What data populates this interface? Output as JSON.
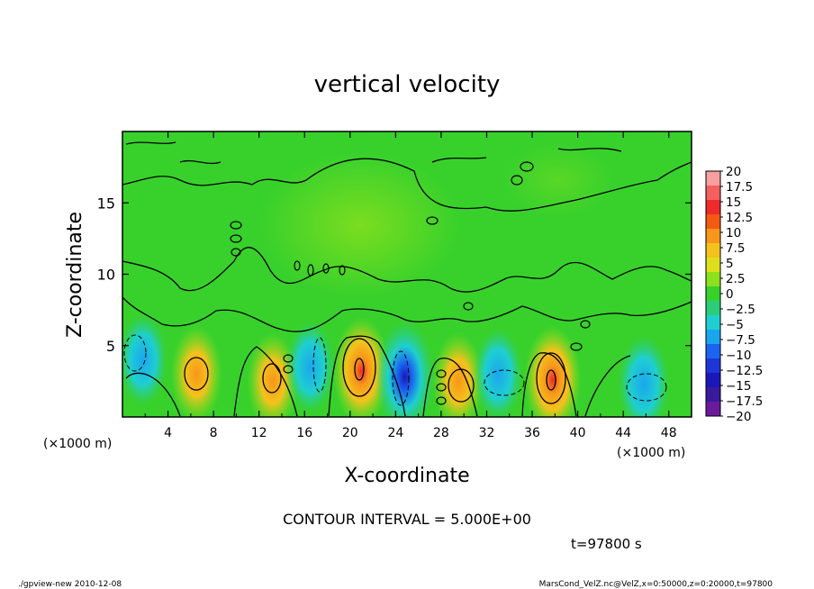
{
  "chart_data": {
    "type": "heatmap",
    "title": "vertical velocity",
    "xlabel": "X-coordinate",
    "ylabel": "Z-coordinate",
    "x_unit_label": "(×1000 m)",
    "x_unit_label_right": "(×1000 m)",
    "xlim": [
      0,
      50
    ],
    "ylim": [
      0,
      20
    ],
    "x_ticks": [
      "4",
      "8",
      "12",
      "16",
      "20",
      "24",
      "28",
      "32",
      "36",
      "40",
      "44",
      "48"
    ],
    "y_ticks": [
      "5",
      "10",
      "15"
    ],
    "colorbar": {
      "labels": [
        "20",
        "17.5",
        "15",
        "12.5",
        "10",
        "7.5",
        "5",
        "2.5",
        "0",
        "−2.5",
        "−5",
        "−7.5",
        "−10",
        "−12.5",
        "−15",
        "−17.5",
        "−20"
      ],
      "colors": [
        "#f8a0a0",
        "#f36060",
        "#ee2a2a",
        "#f35a14",
        "#f7961a",
        "#f4c21c",
        "#dce01c",
        "#8ce01c",
        "#38d12c",
        "#2ccd7a",
        "#1fcfd0",
        "#1aa6ee",
        "#1a64f0",
        "#1e36d8",
        "#1a18b8",
        "#3a1a9c",
        "#6a1a9a"
      ]
    },
    "features": [
      {
        "kind": "updraft",
        "x": 6.5,
        "z": 3.0,
        "w": 7.5
      },
      {
        "kind": "updraft",
        "x": 13.2,
        "z": 2.5,
        "w": 7.5
      },
      {
        "kind": "updraft",
        "x": 21.0,
        "z": 3.2,
        "w": 12.5
      },
      {
        "kind": "updraft",
        "x": 29.5,
        "z": 2.5,
        "w": 7.5
      },
      {
        "kind": "updraft",
        "x": 37.8,
        "z": 2.6,
        "w": 12.5
      },
      {
        "kind": "downdraft",
        "x": 1.8,
        "z": 4.0,
        "w": -5
      },
      {
        "kind": "downdraft",
        "x": 16.5,
        "z": 3.5,
        "w": -5
      },
      {
        "kind": "downdraft",
        "x": 24.8,
        "z": 2.8,
        "w": -15
      },
      {
        "kind": "downdraft",
        "x": 33.0,
        "z": 3.0,
        "w": -5
      },
      {
        "kind": "downdraft",
        "x": 45.8,
        "z": 2.3,
        "w": -7.5
      }
    ],
    "contour_interval": "CONTOUR INTERVAL = 5.000E+00",
    "time_label": "t=97800 s"
  },
  "footer": {
    "left": "./gpview-new  2010-12-08",
    "right": "MarsCond_VelZ.nc@VelZ,x=0:50000,z=0:20000,t=97800"
  }
}
